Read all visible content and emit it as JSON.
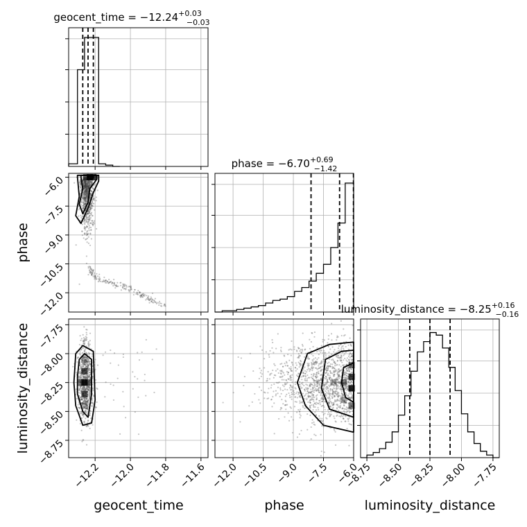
{
  "colors": {
    "frame": "#000000",
    "grid": "#b0b0b0",
    "hist": "#000000",
    "density": "#000000",
    "points": "#555555",
    "background": "#ffffff"
  },
  "chart_data": [
    {
      "type": "histogram",
      "panel": "geocent_time-marginal",
      "title": "geocent_time = −12.24",
      "title_sup": "+0.03",
      "title_sub": "−0.03",
      "xlim": [
        -12.35,
        -11.56
      ],
      "bin_edges": [
        -12.35,
        -12.3,
        -12.26,
        -12.22,
        -12.18,
        -12.14,
        -12.1,
        -12.06
      ],
      "counts": [
        0.02,
        0.75,
        1.0,
        1.0,
        0.02,
        0.01,
        0.0
      ],
      "quantiles": [
        -12.27,
        -12.24,
        -12.21
      ],
      "grid": true
    },
    {
      "type": "histogram",
      "panel": "phase-marginal",
      "title": "phase = −6.70",
      "title_sup": "+0.69",
      "title_sub": "−1.42",
      "xlim": [
        -12.9,
        -6.0
      ],
      "bin_edges": [
        -12.9,
        -12.54,
        -12.18,
        -11.82,
        -11.46,
        -11.1,
        -10.74,
        -10.38,
        -10.02,
        -9.66,
        -9.3,
        -8.94,
        -8.58,
        -8.22,
        -7.86,
        -7.5,
        -7.14,
        -6.78,
        -6.42,
        -6.0
      ],
      "counts": [
        0.0,
        0.01,
        0.01,
        0.02,
        0.03,
        0.04,
        0.05,
        0.07,
        0.09,
        0.1,
        0.12,
        0.16,
        0.19,
        0.24,
        0.3,
        0.37,
        0.5,
        0.69,
        1.0
      ],
      "quantiles": [
        -8.12,
        -6.7,
        -6.01
      ],
      "grid": true
    },
    {
      "type": "histogram",
      "panel": "luminosity_distance-marginal",
      "title": "luminosity_distance = −8.25",
      "title_sup": "+0.16",
      "title_sub": "−0.16",
      "xlim": [
        -8.8,
        -7.7
      ],
      "bin_edges": [
        -8.8,
        -8.75,
        -8.7,
        -8.65,
        -8.6,
        -8.55,
        -8.5,
        -8.45,
        -8.4,
        -8.35,
        -8.3,
        -8.25,
        -8.2,
        -8.15,
        -8.1,
        -8.05,
        -8.0,
        -7.95,
        -7.9,
        -7.85,
        -7.8,
        -7.75,
        -7.7
      ],
      "counts": [
        0.0,
        0.02,
        0.04,
        0.07,
        0.12,
        0.2,
        0.33,
        0.48,
        0.67,
        0.82,
        0.9,
        0.97,
        0.95,
        0.85,
        0.7,
        0.52,
        0.34,
        0.2,
        0.11,
        0.05,
        0.02,
        0.0
      ],
      "quantiles": [
        -8.41,
        -8.25,
        -8.09
      ],
      "grid": true
    },
    {
      "type": "scatter",
      "panel": "phase-vs-geocent_time",
      "xlim": [
        -12.35,
        -11.56
      ],
      "ylim": [
        -13.0,
        -5.8
      ],
      "ylabel": "phase",
      "xticks": [
        -12.2,
        -12.0,
        -11.8,
        -11.6
      ],
      "yticks": [
        -6.0,
        -7.5,
        -9.0,
        -10.5,
        -12.0
      ],
      "ytick_labels": [
        "−6.0",
        "−7.5",
        "−9.0",
        "−10.5",
        "−12.0"
      ],
      "density_cells": [
        {
          "x": -12.23,
          "y": -6.0,
          "v": 1.0
        },
        {
          "x": -12.21,
          "y": -6.0,
          "v": 0.9
        },
        {
          "x": -12.25,
          "y": -6.0,
          "v": 0.7
        },
        {
          "x": -12.27,
          "y": -6.3,
          "v": 0.3
        },
        {
          "x": -12.25,
          "y": -6.6,
          "v": 0.25
        },
        {
          "x": -12.27,
          "y": -7.2,
          "v": 0.15
        }
      ],
      "contours": [
        [
          [
            -12.28,
            -6.0
          ],
          [
            -12.27,
            -6.6
          ],
          [
            -12.29,
            -7.4
          ],
          [
            -12.27,
            -7.9
          ],
          [
            -12.24,
            -7.3
          ],
          [
            -12.23,
            -6.6
          ],
          [
            -12.19,
            -6.1
          ],
          [
            -12.19,
            -5.9
          ],
          [
            -12.28,
            -5.9
          ]
        ],
        [
          [
            -12.3,
            -6.0
          ],
          [
            -12.29,
            -7.0
          ],
          [
            -12.31,
            -8.0
          ],
          [
            -12.28,
            -8.4
          ],
          [
            -12.24,
            -7.6
          ],
          [
            -12.21,
            -6.8
          ],
          [
            -12.18,
            -6.2
          ],
          [
            -12.18,
            -5.9
          ],
          [
            -12.3,
            -5.9
          ]
        ],
        [
          [
            -12.24,
            -5.95
          ],
          [
            -12.23,
            -6.08
          ],
          [
            -12.21,
            -6.05
          ],
          [
            -12.21,
            -5.93
          ]
        ]
      ],
      "trail": [
        [
          -12.24,
          -10.6
        ],
        [
          -12.2,
          -11.2
        ],
        [
          -12.1,
          -11.5
        ],
        [
          -12.0,
          -11.8
        ],
        [
          -11.9,
          -12.3
        ],
        [
          -11.8,
          -12.7
        ]
      ],
      "grid": true
    },
    {
      "type": "scatter",
      "panel": "luminosity_distance-vs-geocent_time",
      "xlim": [
        -12.35,
        -11.56
      ],
      "ylim": [
        -8.9,
        -7.7
      ],
      "xlabel": "geocent_time",
      "ylabel": "luminosity_distance",
      "xticks": [
        -12.2,
        -12.0,
        -11.8,
        -11.6
      ],
      "xtick_labels": [
        "−12.2",
        "−12.0",
        "−11.8",
        "−11.6"
      ],
      "yticks": [
        -7.75,
        -8.0,
        -8.25,
        -8.5,
        -8.75
      ],
      "ytick_labels": [
        "−7.75",
        "−8.00",
        "−8.25",
        "−8.50",
        "−8.75"
      ],
      "density_cells": [
        {
          "x": -12.26,
          "y": -8.25,
          "v": 1.0
        },
        {
          "x": -12.26,
          "y": -8.15,
          "v": 0.75
        },
        {
          "x": -12.26,
          "y": -8.35,
          "v": 0.7
        },
        {
          "x": -12.24,
          "y": -8.25,
          "v": 0.6
        },
        {
          "x": -12.28,
          "y": -8.25,
          "v": 0.55
        },
        {
          "x": -12.26,
          "y": -8.05,
          "v": 0.35
        },
        {
          "x": -12.26,
          "y": -8.45,
          "v": 0.3
        }
      ],
      "contours": [
        [
          [
            -12.3,
            -8.2
          ],
          [
            -12.29,
            -8.05
          ],
          [
            -12.26,
            -8.0
          ],
          [
            -12.22,
            -8.05
          ],
          [
            -12.22,
            -8.35
          ],
          [
            -12.24,
            -8.55
          ],
          [
            -12.27,
            -8.5
          ],
          [
            -12.3,
            -8.35
          ]
        ],
        [
          [
            -12.32,
            -8.25
          ],
          [
            -12.31,
            -8.0
          ],
          [
            -12.27,
            -7.93
          ],
          [
            -12.21,
            -7.98
          ],
          [
            -12.2,
            -8.4
          ],
          [
            -12.22,
            -8.6
          ],
          [
            -12.27,
            -8.62
          ],
          [
            -12.31,
            -8.45
          ]
        ]
      ],
      "grid": true
    },
    {
      "type": "scatter",
      "panel": "luminosity_distance-vs-phase",
      "xlim": [
        -12.9,
        -6.0
      ],
      "ylim": [
        -8.9,
        -7.7
      ],
      "xlabel": "phase",
      "xticks": [
        -12.0,
        -10.5,
        -9.0,
        -7.5,
        -6.0
      ],
      "xtick_labels": [
        "−12.0",
        "−10.5",
        "−9.0",
        "−7.5",
        "−6.0"
      ],
      "yticks": [
        -7.75,
        -8.0,
        -8.25,
        -8.5,
        -8.75
      ],
      "density_cells": [
        {
          "x": -6.1,
          "y": -8.3,
          "v": 1.0
        },
        {
          "x": -6.1,
          "y": -8.2,
          "v": 0.85
        },
        {
          "x": -6.1,
          "y": -8.1,
          "v": 0.6
        },
        {
          "x": -6.1,
          "y": -8.45,
          "v": 0.6
        },
        {
          "x": -6.5,
          "y": -8.25,
          "v": 0.55
        },
        {
          "x": -6.5,
          "y": -8.4,
          "v": 0.4
        },
        {
          "x": -7.0,
          "y": -8.25,
          "v": 0.3
        }
      ],
      "contours": [
        [
          [
            -6.0,
            -8.42
          ],
          [
            -6.4,
            -8.38
          ],
          [
            -6.6,
            -8.25
          ],
          [
            -6.5,
            -8.12
          ],
          [
            -6.0,
            -8.08
          ]
        ],
        [
          [
            -6.0,
            -8.55
          ],
          [
            -7.2,
            -8.48
          ],
          [
            -7.6,
            -8.3
          ],
          [
            -7.4,
            -8.05
          ],
          [
            -6.6,
            -7.98
          ],
          [
            -6.0,
            -7.97
          ]
        ],
        [
          [
            -6.0,
            -8.68
          ],
          [
            -7.5,
            -8.62
          ],
          [
            -8.4,
            -8.45
          ],
          [
            -8.8,
            -8.25
          ],
          [
            -8.3,
            -8.0
          ],
          [
            -7.2,
            -7.92
          ],
          [
            -6.0,
            -7.9
          ]
        ]
      ],
      "grid": true
    },
    {
      "type": "histogram",
      "panel": "axis-only-luminosity_distance",
      "xlabel": "luminosity_distance",
      "xticks": [
        -8.75,
        -8.5,
        -8.25,
        -8.0,
        -7.75
      ],
      "xtick_labels": [
        "−8.75",
        "−8.50",
        "−8.25",
        "−8.00",
        "−7.75"
      ]
    }
  ]
}
